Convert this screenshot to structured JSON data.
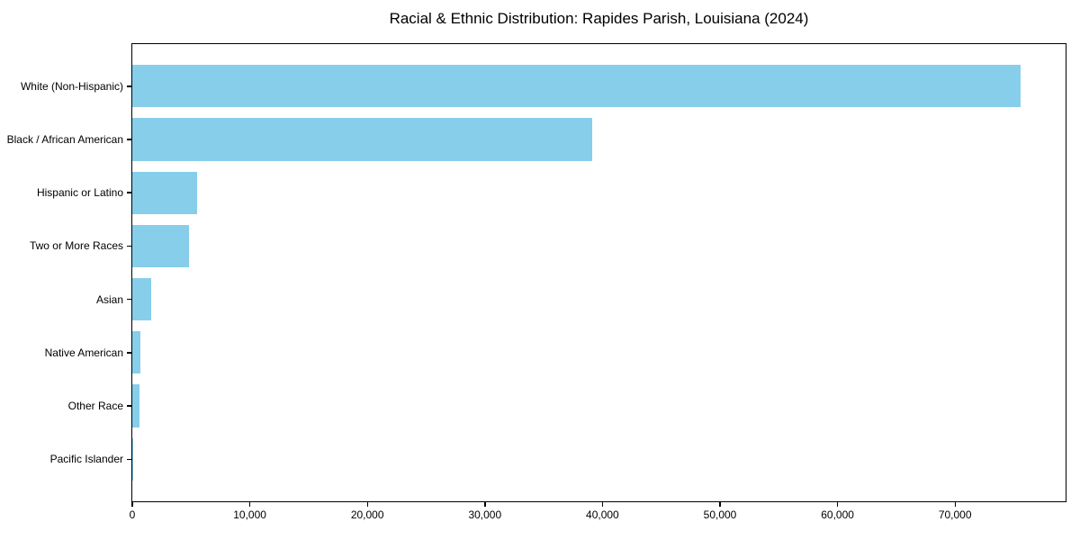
{
  "chart_data": {
    "type": "bar",
    "orientation": "horizontal",
    "title": "Racial & Ethnic Distribution: Rapides Parish, Louisiana (2024)",
    "categories": [
      "White (Non-Hispanic)",
      "Black / African American",
      "Hispanic or Latino",
      "Two or More Races",
      "Asian",
      "Native American",
      "Other Race",
      "Pacific Islander"
    ],
    "values": [
      75600,
      39100,
      5500,
      4800,
      1600,
      660,
      620,
      30
    ],
    "xlabel": "",
    "ylabel": "",
    "xlim": [
      0,
      79400
    ],
    "xticks": [
      0,
      10000,
      20000,
      30000,
      40000,
      50000,
      60000,
      70000
    ],
    "xtick_labels": [
      "0",
      "10,000",
      "20,000",
      "30,000",
      "40,000",
      "50,000",
      "60,000",
      "70,000"
    ],
    "bar_color": "#87CEEB",
    "background_color": "#FFFFFF",
    "frame_color": "#000000",
    "text_color": "#000000",
    "grid": false,
    "legend": null
  }
}
